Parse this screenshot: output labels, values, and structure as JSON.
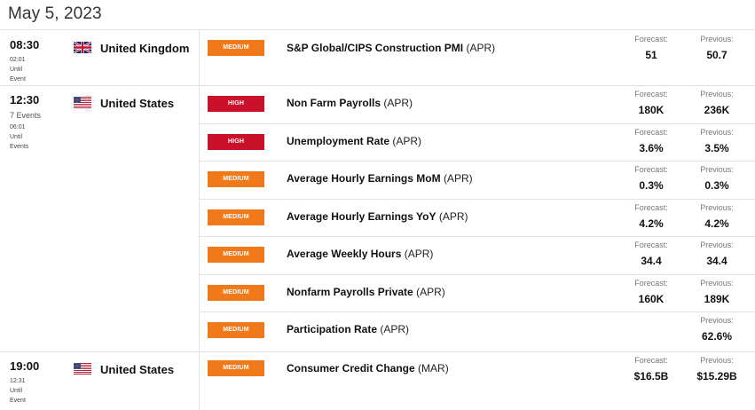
{
  "date": "May 5, 2023",
  "colors": {
    "medium": "#f07a1a",
    "high": "#c9112a"
  },
  "forecast_label": "Forecast:",
  "previous_label": "Previous:",
  "groups": [
    {
      "time": "08:30",
      "events_count": "",
      "until_time": "02:01",
      "until_word": "Until",
      "event_word": "Event",
      "country": "United Kingdom",
      "flag": "uk-flag-icon",
      "events": [
        {
          "impact": "MEDIUM",
          "title": "S&P Global/CIPS Construction PMI",
          "period": "(APR)",
          "forecast": "51",
          "previous": "50.7"
        }
      ]
    },
    {
      "time": "12:30",
      "events_count": "7 Events",
      "until_time": "06:01",
      "until_word": "Until",
      "event_word": "Events",
      "country": "United States",
      "flag": "us-flag-icon",
      "events": [
        {
          "impact": "HIGH",
          "title": "Non Farm Payrolls",
          "period": "(APR)",
          "forecast": "180K",
          "previous": "236K"
        },
        {
          "impact": "HIGH",
          "title": "Unemployment Rate",
          "period": "(APR)",
          "forecast": "3.6%",
          "previous": "3.5%"
        },
        {
          "impact": "MEDIUM",
          "title": "Average Hourly Earnings MoM",
          "period": "(APR)",
          "forecast": "0.3%",
          "previous": "0.3%"
        },
        {
          "impact": "MEDIUM",
          "title": "Average Hourly Earnings YoY",
          "period": "(APR)",
          "forecast": "4.2%",
          "previous": "4.2%"
        },
        {
          "impact": "MEDIUM",
          "title": "Average Weekly Hours",
          "period": "(APR)",
          "forecast": "34.4",
          "previous": "34.4"
        },
        {
          "impact": "MEDIUM",
          "title": "Nonfarm Payrolls Private",
          "period": "(APR)",
          "forecast": "160K",
          "previous": "189K"
        },
        {
          "impact": "MEDIUM",
          "title": "Participation Rate",
          "period": "(APR)",
          "forecast": "",
          "previous": "62.6%"
        }
      ]
    },
    {
      "time": "19:00",
      "events_count": "",
      "until_time": "12:31",
      "until_word": "Until",
      "event_word": "Event",
      "country": "United States",
      "flag": "us-flag-icon",
      "events": [
        {
          "impact": "MEDIUM",
          "title": "Consumer Credit Change",
          "period": "(MAR)",
          "forecast": "$16.5B",
          "previous": "$15.29B"
        }
      ]
    }
  ]
}
